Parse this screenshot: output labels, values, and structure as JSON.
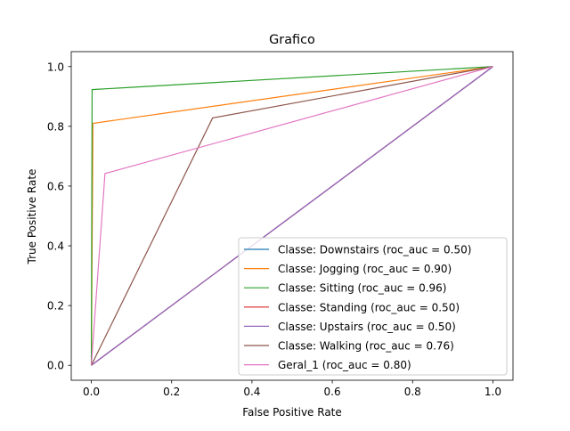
{
  "chart_data": {
    "type": "line",
    "title": "Grafico",
    "xlabel": "False Positive Rate",
    "ylabel": "True Positive Rate",
    "xlim": [
      -0.05,
      1.05
    ],
    "ylim": [
      -0.05,
      1.05
    ],
    "xticks": [
      0.0,
      0.2,
      0.4,
      0.6,
      0.8,
      1.0
    ],
    "xtick_labels": [
      "0.0",
      "0.2",
      "0.4",
      "0.6",
      "0.8",
      "1.0"
    ],
    "yticks": [
      0.0,
      0.2,
      0.4,
      0.6,
      0.8,
      1.0
    ],
    "ytick_labels": [
      "0.0",
      "0.2",
      "0.4",
      "0.6",
      "0.8",
      "1.0"
    ],
    "grid": false,
    "legend_position": "lower right",
    "series": [
      {
        "name": "Classe: Downstairs (roc_auc = 0.50)",
        "color": "#1f77b4",
        "x": [
          0,
          1,
          1
        ],
        "y": [
          0,
          1,
          1
        ]
      },
      {
        "name": "Classe: Jogging (roc_auc = 0.90)",
        "color": "#ff7f0e",
        "x": [
          0,
          0.004,
          1
        ],
        "y": [
          0,
          0.81,
          1
        ]
      },
      {
        "name": "Classe: Sitting (roc_auc = 0.96)",
        "color": "#2ca02c",
        "x": [
          0,
          0.002,
          1
        ],
        "y": [
          0,
          0.923,
          1
        ]
      },
      {
        "name": "Classe: Standing (roc_auc = 0.50)",
        "color": "#d62728",
        "x": [
          0,
          1,
          1
        ],
        "y": [
          0,
          1,
          1
        ]
      },
      {
        "name": "Classe: Upstairs (roc_auc = 0.50)",
        "color": "#9467bd",
        "x": [
          0,
          1,
          1
        ],
        "y": [
          0,
          1,
          1
        ]
      },
      {
        "name": "Classe: Walking (roc_auc = 0.76)",
        "color": "#8c564b",
        "x": [
          0,
          0.302,
          1
        ],
        "y": [
          0,
          0.828,
          1
        ]
      },
      {
        "name": "Geral_1 (roc_auc = 0.80)",
        "color": "#e377c2",
        "x": [
          0,
          0.034,
          1
        ],
        "y": [
          0,
          0.642,
          1
        ]
      }
    ]
  }
}
